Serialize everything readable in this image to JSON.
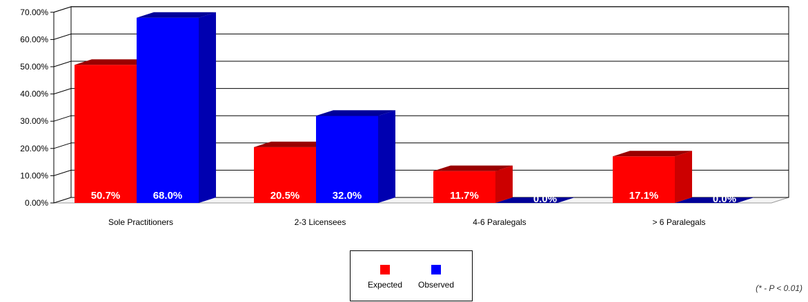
{
  "chart_data": {
    "type": "bar",
    "categories": [
      "Sole Practitioners",
      "2-3 Licensees",
      "4-6 Paralegals",
      "> 6 Paralegals"
    ],
    "series": [
      {
        "name": "Expected",
        "values": [
          50.7,
          20.5,
          11.7,
          17.1
        ],
        "labels": [
          "50.7%",
          "20.5%",
          "11.7%",
          "17.1%"
        ],
        "color": "#ff0000",
        "side_color": "#cc0000",
        "top_color": "#990000"
      },
      {
        "name": "Observed",
        "values": [
          68.0,
          32.0,
          0.0,
          0.0
        ],
        "labels": [
          "68.0%",
          "32.0%",
          "0.0%",
          "0.0%"
        ],
        "color": "#0000ff",
        "side_color": "#0000b0",
        "top_color": "#000099"
      }
    ],
    "y_ticks": [
      "0.00%",
      "10.00%",
      "20.00%",
      "30.00%",
      "40.00%",
      "50.00%",
      "60.00%",
      "70.00%"
    ],
    "ylim": [
      0,
      70
    ],
    "grid": true,
    "legend_position": "bottom-center",
    "note": "(* - P < 0.01)"
  }
}
